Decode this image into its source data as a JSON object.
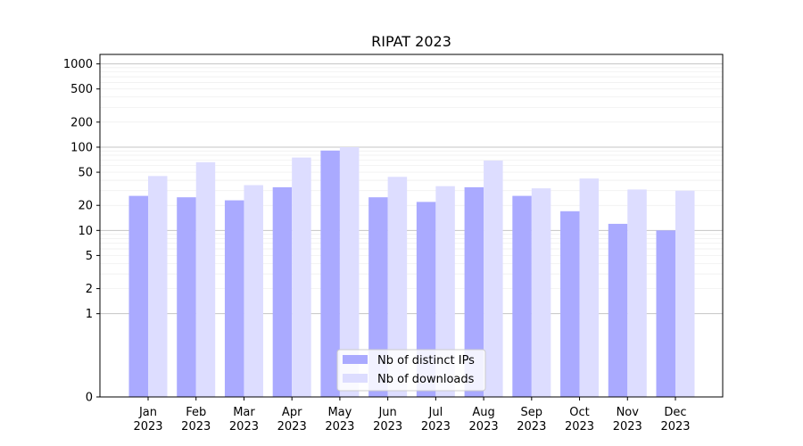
{
  "chart_data": {
    "type": "bar",
    "title": "RIPAT 2023",
    "xlabel": "",
    "ylabel": "",
    "yscale": "symlog",
    "ylim": [
      0,
      1300
    ],
    "y_ticks": [
      "0",
      "1",
      "2",
      "5",
      "10",
      "20",
      "50",
      "100",
      "200",
      "500",
      "1000"
    ],
    "categories": [
      {
        "month": "Jan",
        "year": "2023"
      },
      {
        "month": "Feb",
        "year": "2023"
      },
      {
        "month": "Mar",
        "year": "2023"
      },
      {
        "month": "Apr",
        "year": "2023"
      },
      {
        "month": "May",
        "year": "2023"
      },
      {
        "month": "Jun",
        "year": "2023"
      },
      {
        "month": "Jul",
        "year": "2023"
      },
      {
        "month": "Aug",
        "year": "2023"
      },
      {
        "month": "Sep",
        "year": "2023"
      },
      {
        "month": "Oct",
        "year": "2023"
      },
      {
        "month": "Nov",
        "year": "2023"
      },
      {
        "month": "Dec",
        "year": "2023"
      }
    ],
    "series": [
      {
        "name": "Nb of distinct IPs",
        "color": "#aaaaff",
        "values": [
          26,
          25,
          23,
          33,
          91,
          25,
          22,
          33,
          26,
          17,
          12,
          10
        ]
      },
      {
        "name": "Nb of downloads",
        "color": "#ddddff",
        "values": [
          45,
          66,
          35,
          75,
          100,
          44,
          34,
          69,
          32,
          42,
          31,
          30
        ]
      }
    ],
    "legend_position": "lower-center",
    "grid": true
  }
}
